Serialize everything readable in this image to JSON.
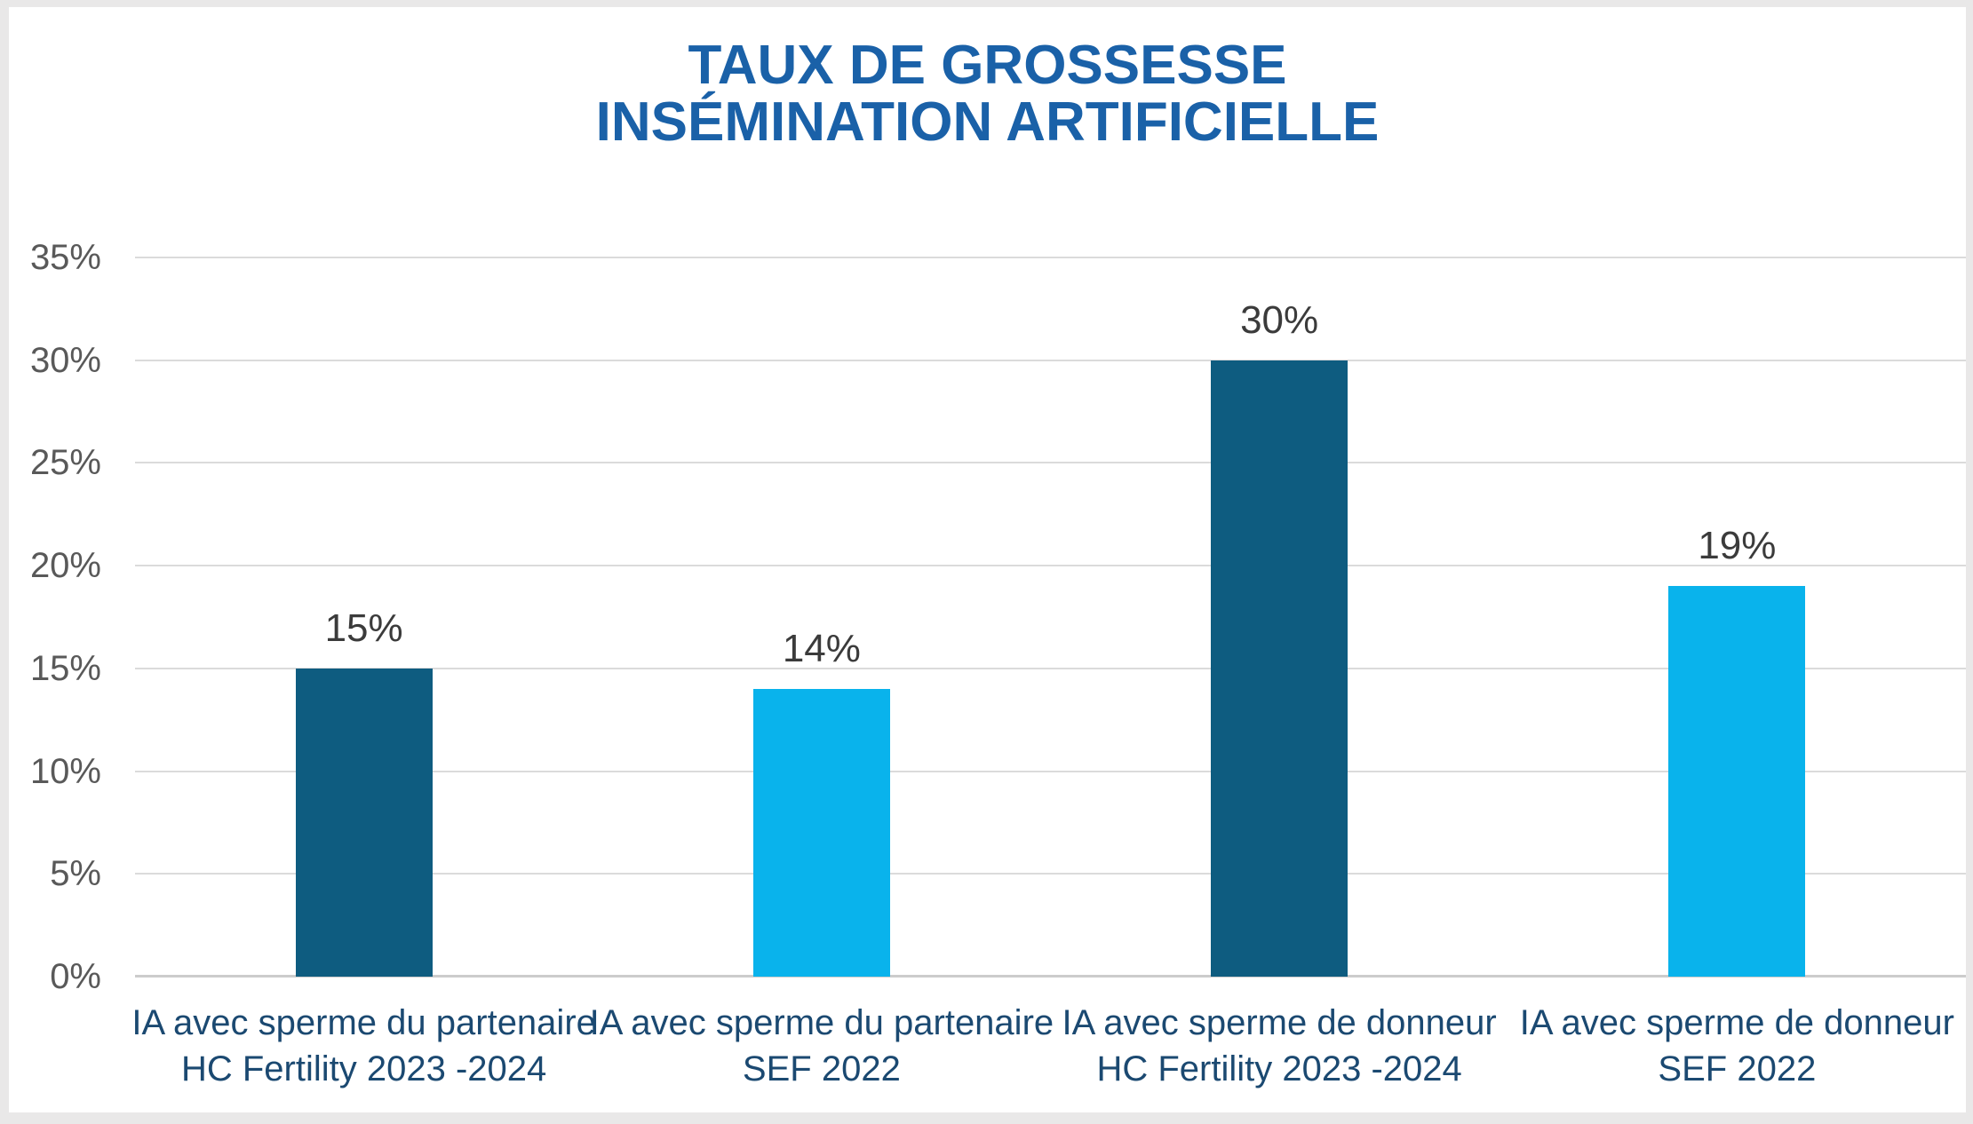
{
  "title": {
    "line1": "TAUX DE GROSSESSE",
    "line2": "INSÉMINATION ARTIFICIELLE"
  },
  "colors": {
    "title_blue": "#1a61a8",
    "category_label_navy": "#1b4971",
    "tick_label_grey": "#595959",
    "data_label_grey": "#3b3b3b",
    "dark_bar": "#0e5c80",
    "light_bar": "#09b3ec",
    "gridline": "#dbdbdb",
    "axis_line": "#cccccc",
    "chart_background": "#ffffff",
    "outer_frame": "#e9e8e8"
  },
  "chart_data": {
    "type": "bar",
    "title": "TAUX DE GROSSESSE INSÉMINATION ARTIFICIELLE",
    "xlabel": "",
    "ylabel": "",
    "ylim": [
      0,
      35
    ],
    "ytick_step": 5,
    "ytick_labels": [
      "0%",
      "5%",
      "10%",
      "15%",
      "20%",
      "25%",
      "30%",
      "35%"
    ],
    "grid": true,
    "legend": false,
    "categories": [
      {
        "line1": "IA avec sperme du partenaire",
        "line2": "HC Fertility 2023 -2024"
      },
      {
        "line1": "IA avec sperme du partenaire",
        "line2": "SEF 2022"
      },
      {
        "line1": "IA avec sperme de donneur",
        "line2": "HC Fertility 2023 -2024"
      },
      {
        "line1": "IA avec sperme de donneur",
        "line2": "SEF 2022"
      }
    ],
    "values": [
      15,
      14,
      30,
      19
    ],
    "value_labels": [
      "15%",
      "14%",
      "30%",
      "19%"
    ],
    "bar_colors": [
      "#0e5c80",
      "#09b3ec",
      "#0e5c80",
      "#09b3ec"
    ]
  }
}
